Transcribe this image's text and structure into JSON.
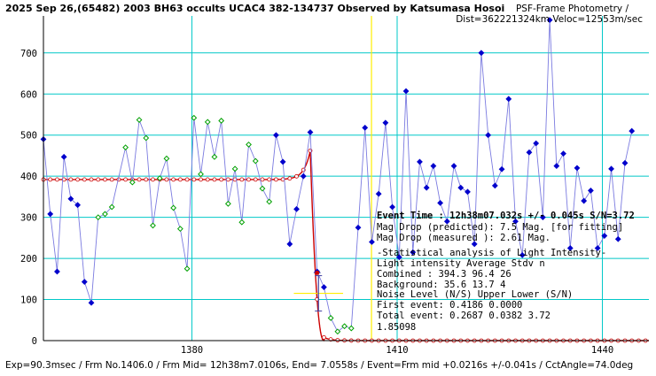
{
  "header": {
    "title": "2025 Sep 26,(65482) 2003 BH63 occults UCAC4 382-134737 Observed by Katsumasa Hosoi",
    "subtitle_line1": "PSF-Frame Photometry /",
    "subtitle_line2": "Dist=362221324km Veloc=12553m/sec"
  },
  "footer": "Exp=90.3msec / Frm No.1406.0 / Frm Mid= 12h38m7.0106s, End= 7.0558s / Event=Frm mid +0.0216s +/-0.041s / CctAngle=74.0deg",
  "analysis": {
    "lines": [
      "Event Time : 12h38m07.032s  +/- 0.045s  S/N=3.72",
      "Mag Drop (predicted):  7.5    Mag. [for fitting]",
      "Mag Drop (measured ):  2.61   Mag.",
      "-Statistical analysis of Light Intensity-",
      "Light intensity     Average   Stdv      n",
      "  Combined  :        394.3     96.4     26",
      "  Background:         35.6     13.7      4",
      "Noise Level (N/S)  Upper     Lower    (S/N)",
      "  First event:     0.4186    0.0000",
      "  Total event:     0.2687    0.0382   3.72",
      "1.85098"
    ]
  },
  "colors": {
    "grid": "#00c8c8",
    "blue_series": "#0000cc",
    "green_series": "#00a000",
    "model": "#cc0000",
    "event_line": "#ffee00"
  },
  "chart_data": {
    "type": "line",
    "xlim": [
      1358.3,
      1446.8
    ],
    "ylim": [
      0,
      790
    ],
    "x_ticks": [
      1380,
      1410,
      1440
    ],
    "y_ticks": [
      0,
      100,
      200,
      300,
      400,
      500,
      600,
      700
    ],
    "event_frame": 1406.25,
    "series": [
      {
        "kind": "observed",
        "points": [
          [
            1358.3,
            490,
            "b"
          ],
          [
            1359.3,
            308,
            "b"
          ],
          [
            1360.3,
            168,
            "b"
          ],
          [
            1361.3,
            447,
            "b"
          ],
          [
            1362.3,
            345,
            "b"
          ],
          [
            1363.3,
            330,
            "b"
          ],
          [
            1364.3,
            143,
            "b"
          ],
          [
            1365.3,
            92,
            "b"
          ],
          [
            1366.3,
            300,
            "g"
          ],
          [
            1367.3,
            308,
            "g"
          ],
          [
            1368.3,
            325,
            "g"
          ],
          [
            1370.3,
            470,
            "g"
          ],
          [
            1371.3,
            385,
            "g"
          ],
          [
            1372.3,
            537,
            "g"
          ],
          [
            1373.3,
            493,
            "g"
          ],
          [
            1374.3,
            280,
            "g"
          ],
          [
            1375.3,
            395,
            "g"
          ],
          [
            1376.3,
            443,
            "g"
          ],
          [
            1377.3,
            323,
            "g"
          ],
          [
            1378.3,
            272,
            "g"
          ],
          [
            1379.3,
            175,
            "g"
          ],
          [
            1380.3,
            542,
            "g"
          ],
          [
            1381.3,
            405,
            "g"
          ],
          [
            1382.3,
            532,
            "g"
          ],
          [
            1383.3,
            447,
            "g"
          ],
          [
            1384.3,
            535,
            "g"
          ],
          [
            1385.3,
            333,
            "g"
          ],
          [
            1386.3,
            418,
            "g"
          ],
          [
            1387.3,
            288,
            "g"
          ],
          [
            1388.3,
            477,
            "g"
          ],
          [
            1389.3,
            437,
            "g"
          ],
          [
            1390.3,
            370,
            "g"
          ],
          [
            1391.3,
            338,
            "g"
          ],
          [
            1392.3,
            500,
            "b"
          ],
          [
            1393.3,
            435,
            "b"
          ],
          [
            1394.3,
            235,
            "b"
          ],
          [
            1395.3,
            320,
            "b"
          ],
          [
            1396.3,
            400,
            "b"
          ],
          [
            1397.3,
            507,
            "b"
          ],
          [
            1398.3,
            168,
            "b"
          ],
          [
            1399.3,
            130,
            "b"
          ],
          [
            1400.3,
            55,
            "g"
          ],
          [
            1401.3,
            22,
            "g"
          ],
          [
            1402.3,
            35,
            "g"
          ],
          [
            1403.3,
            30,
            "g"
          ],
          [
            1404.3,
            275,
            "b"
          ],
          [
            1405.3,
            518,
            "b"
          ],
          [
            1406.3,
            240,
            "b"
          ],
          [
            1407.3,
            357,
            "b"
          ],
          [
            1408.3,
            530,
            "b"
          ],
          [
            1409.3,
            325,
            "b"
          ],
          [
            1410.3,
            203,
            "b"
          ],
          [
            1411.3,
            607,
            "b"
          ],
          [
            1412.3,
            215,
            "b"
          ],
          [
            1413.3,
            435,
            "b"
          ],
          [
            1414.3,
            372,
            "b"
          ],
          [
            1415.3,
            425,
            "b"
          ],
          [
            1416.3,
            335,
            "b"
          ],
          [
            1417.3,
            290,
            "b"
          ],
          [
            1418.3,
            425,
            "b"
          ],
          [
            1419.3,
            372,
            "b"
          ],
          [
            1420.3,
            362,
            "b"
          ],
          [
            1421.3,
            235,
            "b"
          ],
          [
            1422.3,
            700,
            "b"
          ],
          [
            1423.3,
            500,
            "b"
          ],
          [
            1424.3,
            377,
            "b"
          ],
          [
            1425.3,
            417,
            "b"
          ],
          [
            1426.3,
            588,
            "b"
          ],
          [
            1427.3,
            290,
            "b"
          ],
          [
            1428.3,
            208,
            "b"
          ],
          [
            1429.3,
            458,
            "b"
          ],
          [
            1430.3,
            480,
            "b"
          ],
          [
            1431.3,
            300,
            "b"
          ],
          [
            1432.3,
            780,
            "b"
          ],
          [
            1433.3,
            425,
            "b"
          ],
          [
            1434.3,
            455,
            "b"
          ],
          [
            1435.3,
            225,
            "b"
          ],
          [
            1436.3,
            420,
            "b"
          ],
          [
            1437.3,
            340,
            "b"
          ],
          [
            1438.3,
            365,
            "b"
          ],
          [
            1439.3,
            225,
            "b"
          ],
          [
            1440.3,
            255,
            "b"
          ],
          [
            1441.3,
            418,
            "b"
          ],
          [
            1442.3,
            247,
            "b"
          ],
          [
            1443.3,
            432,
            "b"
          ],
          [
            1444.3,
            510,
            "b"
          ]
        ]
      },
      {
        "kind": "model",
        "baseline": 392,
        "floor": 0,
        "peak_frame": 1397.3,
        "peak_value": 462,
        "drop_start": 1397.0,
        "drop_end": 1399.3,
        "x_start": 1358.3,
        "x_end": 1446.8
      }
    ],
    "event_marker": {
      "x": 1398.3,
      "y": 165,
      "err_x": 0.5
    },
    "fit_marker": {
      "x": 1398.5,
      "y": 115,
      "span": 1.8
    }
  }
}
